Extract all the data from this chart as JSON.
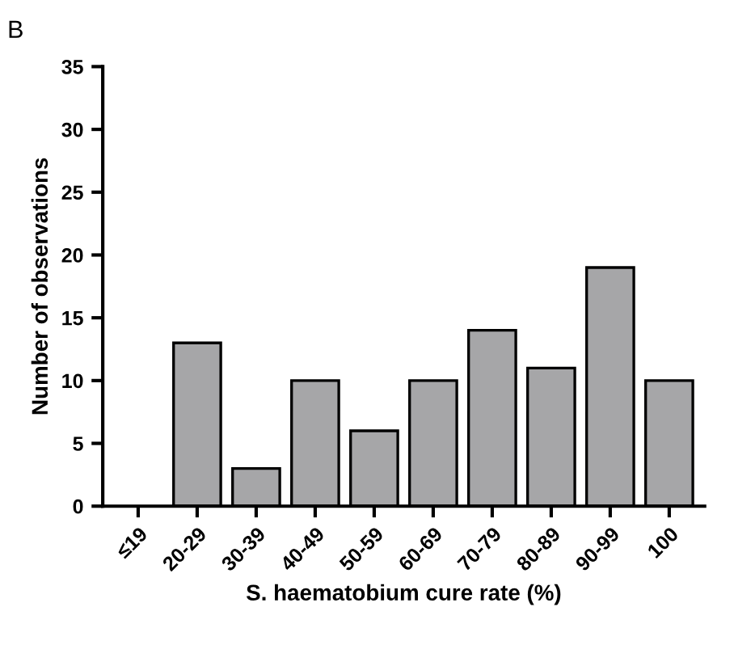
{
  "chart_data": {
    "type": "bar",
    "title": "B",
    "categories": [
      "≤19",
      "20-29",
      "30-39",
      "40-49",
      "50-59",
      "60-69",
      "70-79",
      "80-89",
      "90-99",
      "100"
    ],
    "values": [
      0,
      13,
      3,
      10,
      6,
      10,
      14,
      11,
      19,
      10
    ],
    "color": "#a6a6a8",
    "xlabel": "S. haematobium cure rate (%)",
    "ylabel": "Number of observations",
    "ylim": [
      0,
      35
    ],
    "yticks": [
      0,
      5,
      10,
      15,
      20,
      25,
      30,
      35
    ],
    "grid": false
  }
}
